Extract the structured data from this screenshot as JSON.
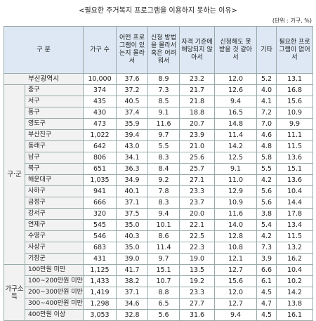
{
  "title": "<필요한 주거복지 프로그램을 이용하지 못하는 이유>",
  "unit": "(단위 : 가구, %)",
  "header": [
    "구 분",
    "가구 수",
    "어떤 프로그램이 있는지 몰라서",
    "신청 방법을 몰라서 혹은 어려워서",
    "자격 기준에 해당되지 않아서",
    "신청해도 못 받을 것 같아서",
    "기타",
    "필요한 프로그램이 없어서"
  ],
  "total": {
    "name": "부산광역시",
    "values": [
      "10,000",
      "37.6",
      "8.9",
      "23.2",
      "12.0",
      "5.2",
      "13.1"
    ]
  },
  "groups": [
    {
      "label": "구·군",
      "rows": [
        {
          "name": "중구",
          "values": [
            "374",
            "37.2",
            "7.3",
            "21.7",
            "12.6",
            "4.0",
            "16.8"
          ]
        },
        {
          "name": "서구",
          "values": [
            "435",
            "40.5",
            "8.5",
            "21.8",
            "9.4",
            "4.1",
            "15.6"
          ]
        },
        {
          "name": "동구",
          "values": [
            "430",
            "37.4",
            "9.1",
            "18.8",
            "16.5",
            "7.2",
            "10.9"
          ]
        },
        {
          "name": "영도구",
          "values": [
            "473",
            "35.9",
            "11.6",
            "20.7",
            "14.8",
            "7.0",
            "9.9"
          ]
        },
        {
          "name": "부산진구",
          "values": [
            "1,022",
            "39.4",
            "9.7",
            "23.9",
            "11.4",
            "4.6",
            "11.1"
          ]
        },
        {
          "name": "동래구",
          "values": [
            "642",
            "43.0",
            "5.5",
            "21.0",
            "14.2",
            "4.8",
            "11.5"
          ]
        },
        {
          "name": "남구",
          "values": [
            "806",
            "34.1",
            "8.3",
            "25.6",
            "12.5",
            "5.8",
            "13.6"
          ]
        },
        {
          "name": "북구",
          "values": [
            "651",
            "36.3",
            "8.4",
            "25.7",
            "9.1",
            "5.5",
            "15.1"
          ]
        },
        {
          "name": "해운대구",
          "values": [
            "1,035",
            "34.9",
            "9.2",
            "27.1",
            "11.0",
            "4.2",
            "13.6"
          ]
        },
        {
          "name": "사하구",
          "values": [
            "941",
            "40.1",
            "7.8",
            "23.3",
            "12.9",
            "5.6",
            "10.4"
          ]
        },
        {
          "name": "금정구",
          "values": [
            "666",
            "37.1",
            "8.3",
            "23.7",
            "10.9",
            "5.6",
            "14.4"
          ]
        },
        {
          "name": "강서구",
          "values": [
            "320",
            "37.5",
            "9.4",
            "20.0",
            "11.6",
            "3.8",
            "17.8"
          ]
        },
        {
          "name": "연제구",
          "values": [
            "545",
            "35.0",
            "10.1",
            "22.1",
            "14.0",
            "5.4",
            "13.4"
          ]
        },
        {
          "name": "수영구",
          "values": [
            "546",
            "40.3",
            "8.6",
            "22.5",
            "12.8",
            "4.2",
            "11.5"
          ]
        },
        {
          "name": "사상구",
          "values": [
            "683",
            "35.0",
            "11.4",
            "22.3",
            "10.8",
            "7.3",
            "13.2"
          ]
        },
        {
          "name": "기장군",
          "values": [
            "431",
            "39.0",
            "9.7",
            "19.0",
            "12.1",
            "3.9",
            "16.2"
          ]
        }
      ]
    },
    {
      "label": "가구소득",
      "rows": [
        {
          "name": "100만원 미만",
          "values": [
            "1,125",
            "41.7",
            "15.1",
            "13.5",
            "12.7",
            "6.6",
            "10.4"
          ]
        },
        {
          "name": "100~200만원 미만",
          "values": [
            "1,433",
            "38.2",
            "10.7",
            "19.2",
            "15.6",
            "6.1",
            "10.2"
          ]
        },
        {
          "name": "200~300만원 미만",
          "values": [
            "1,419",
            "37.1",
            "8.8",
            "23.3",
            "12.0",
            "4.5",
            "14.2"
          ]
        },
        {
          "name": "300~400만원 미만",
          "values": [
            "1,298",
            "34.6",
            "6.5",
            "27.7",
            "12.7",
            "4.7",
            "13.8"
          ]
        },
        {
          "name": "400만원 이상",
          "values": [
            "3,053",
            "32.8",
            "5.6",
            "31.6",
            "9.4",
            "4.5",
            "16.1"
          ]
        }
      ]
    }
  ]
}
